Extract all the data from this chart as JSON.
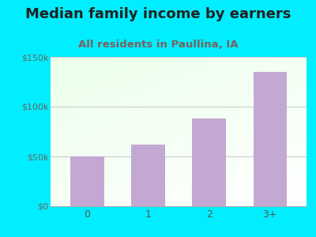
{
  "title": "Median family income by earners",
  "subtitle": "All residents in Paullina, IA",
  "categories": [
    "0",
    "1",
    "2",
    "3+"
  ],
  "values": [
    50000,
    62000,
    88000,
    135000
  ],
  "bar_color": "#c4a8d4",
  "title_color": "#222222",
  "subtitle_color": "#7a6060",
  "bg_color": "#00eeff",
  "ylim": [
    0,
    150000
  ],
  "yticks": [
    0,
    50000,
    100000,
    150000
  ],
  "ytick_labels": [
    "$0",
    "$50k",
    "$100k",
    "$150k"
  ],
  "title_fontsize": 13,
  "subtitle_fontsize": 9.5,
  "tick_fontsize": 8,
  "xtick_fontsize": 9
}
